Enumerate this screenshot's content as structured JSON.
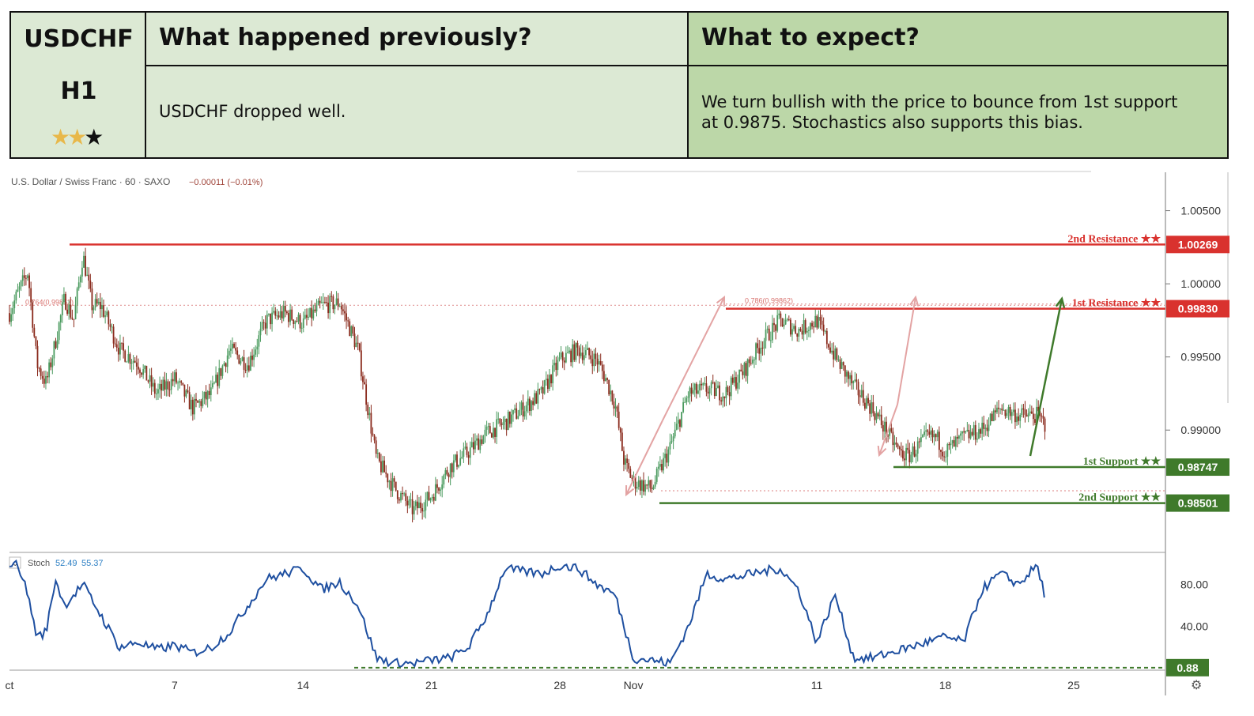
{
  "header": {
    "symbol": "USDCHF",
    "timeframe": "H1",
    "rating_stars": [
      {
        "glyph": "★",
        "color": "#e8b84a"
      },
      {
        "glyph": "★",
        "color": "#e8b84a"
      },
      {
        "glyph": "★",
        "color": "#111111"
      }
    ],
    "previous_title": "What happened previously?",
    "previous_text": "USDCHF dropped well.",
    "expect_title": "What to expect?",
    "expect_text_line1": "We turn bullish with the price to bounce from 1st support",
    "expect_text_line2": "at 0.9875. Stochastics also supports this bias."
  },
  "chart_info": {
    "instrument": "U.S. Dollar / Swiss Franc · 60 · SAXO",
    "change": "−0.00011 (−0.01%)",
    "stoch_label": "Stoch",
    "stoch_k": "52.49",
    "stoch_d": "55.37"
  },
  "colors": {
    "resistance": "#d9322e",
    "support": "#3f7a2b",
    "stoch_line": "#1e4fa0",
    "candle_up": "#4a9a5e",
    "candle_down": "#8a2a1c",
    "arrow_pink": "#e3a3a3",
    "arrow_green": "#3f7a2b"
  },
  "chart_data": {
    "type": "line",
    "price_axis": {
      "ylim": [
        0.9818,
        1.0073
      ],
      "ticks": [
        "1.00500",
        "1.00000",
        "0.99500",
        "0.99000"
      ],
      "tick_values": [
        1.005,
        1.0,
        0.995,
        0.99
      ]
    },
    "x_axis": {
      "ticks": [
        "ct",
        "7",
        "14",
        "21",
        "28",
        "Nov",
        "11",
        "18",
        "25"
      ],
      "tick_days": [
        -2,
        7,
        14,
        21,
        28,
        32,
        42,
        49,
        56
      ],
      "xlim": [
        -2,
        61
      ]
    },
    "levels": [
      {
        "label": "2nd Resistance ★★",
        "value": 1.00269,
        "value_text": "1.00269",
        "kind": "resistance"
      },
      {
        "label": "1st Resistance ★★",
        "value": 0.9983,
        "value_text": "0.99830",
        "kind": "resistance"
      },
      {
        "label": "1st Support ★★",
        "value": 0.98747,
        "value_text": "0.98747",
        "kind": "support"
      },
      {
        "label": "2nd Support ★★",
        "value": 0.98501,
        "value_text": "0.98501",
        "kind": "support"
      }
    ],
    "fib_levels": [
      {
        "label": "0.764(0.99853)",
        "value": 0.99853
      },
      {
        "label": "0.786(0.99862)",
        "value": 0.99862
      }
    ],
    "price_series": {
      "name": "USDCHF",
      "x": [
        -2,
        -1.5,
        -1,
        -0.5,
        0,
        0.5,
        1,
        1.5,
        2,
        2.5,
        3,
        4,
        5,
        6,
        7,
        8,
        9,
        10,
        11,
        12,
        13,
        14,
        15,
        16,
        17,
        18,
        19,
        20,
        21,
        22,
        23,
        24,
        25,
        26,
        27,
        28,
        29,
        30,
        30.5,
        31,
        31.5,
        32,
        33,
        34,
        35,
        36,
        37,
        38,
        39,
        40,
        41,
        42,
        43,
        44,
        45,
        46,
        46.5,
        47,
        48,
        48.5,
        49,
        50,
        51,
        52,
        53,
        54,
        54.5
      ],
      "y": [
        0.998,
        0.9995,
        1.0008,
        0.9945,
        0.9932,
        0.996,
        0.999,
        0.9975,
        1.002,
        0.9985,
        0.9985,
        0.9955,
        0.9946,
        0.9925,
        0.9935,
        0.9915,
        0.9925,
        0.9955,
        0.9945,
        0.9975,
        0.998,
        0.9973,
        0.9985,
        0.9987,
        0.9955,
        0.988,
        0.986,
        0.9845,
        0.9855,
        0.9875,
        0.9885,
        0.9898,
        0.9905,
        0.9915,
        0.9925,
        0.9948,
        0.9955,
        0.9948,
        0.9935,
        0.9918,
        0.9878,
        0.9865,
        0.986,
        0.9888,
        0.9925,
        0.9928,
        0.9925,
        0.994,
        0.996,
        0.9975,
        0.9968,
        0.9975,
        0.995,
        0.993,
        0.9915,
        0.9895,
        0.9885,
        0.9882,
        0.9895,
        0.9895,
        0.9885,
        0.9895,
        0.99,
        0.9915,
        0.991,
        0.991,
        0.9903
      ]
    },
    "stoch_axis": {
      "ylim": [
        0,
        108
      ],
      "ticks": [
        "80.00",
        "40.00"
      ],
      "tick_values": [
        80,
        40
      ]
    },
    "stoch_level": {
      "value": 0.88,
      "value_text": "0.88"
    },
    "stoch_series": {
      "x": [
        -2,
        -1.5,
        -1,
        -0.5,
        0,
        0.5,
        1,
        2,
        3,
        4,
        5,
        6,
        7,
        8,
        9,
        10,
        11,
        12,
        13,
        14,
        15,
        16,
        17,
        18,
        19,
        20,
        21,
        22,
        23,
        24,
        25,
        26,
        27,
        28,
        29,
        30,
        31,
        32,
        33,
        34,
        35,
        36,
        37,
        38,
        39,
        40,
        41,
        42,
        43,
        44,
        45,
        46,
        47,
        48,
        49,
        50,
        51,
        52,
        53,
        54,
        54.5
      ],
      "y": [
        100,
        98,
        70,
        30,
        35,
        85,
        60,
        80,
        50,
        20,
        25,
        18,
        22,
        15,
        20,
        35,
        60,
        85,
        90,
        95,
        75,
        82,
        60,
        10,
        5,
        5,
        8,
        10,
        20,
        50,
        95,
        92,
        90,
        98,
        95,
        80,
        70,
        10,
        8,
        5,
        40,
        90,
        85,
        88,
        92,
        95,
        75,
        25,
        70,
        10,
        10,
        15,
        20,
        25,
        30,
        25,
        75,
        90,
        80,
        98,
        65
      ]
    }
  }
}
